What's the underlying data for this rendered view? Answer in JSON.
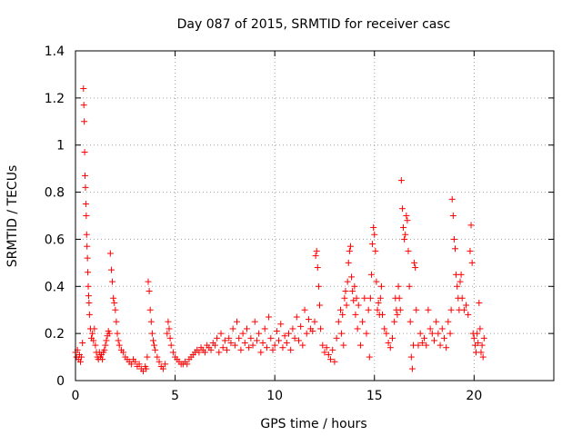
{
  "chart_data": {
    "type": "scatter",
    "title": "Day 087 of 2015, SRMTID for receiver casc",
    "xlabel": "GPS time / hours",
    "ylabel": "SRMTID / TECUs",
    "xlim": [
      0,
      24
    ],
    "ylim": [
      0,
      1.4
    ],
    "xticks": [
      "0",
      "5",
      "10",
      "15",
      "20"
    ],
    "xtick_values": [
      0,
      5,
      10,
      15,
      20
    ],
    "yticks": [
      "0",
      "0.2",
      "0.4",
      "0.6",
      "0.8",
      "1",
      "1.2",
      "1.4"
    ],
    "ytick_values": [
      0,
      0.2,
      0.4,
      0.6,
      0.8,
      1.0,
      1.2,
      1.4
    ],
    "grid": true,
    "marker": "+",
    "color": "#ff0000",
    "series": [
      {
        "name": "SRMTID",
        "points": [
          [
            0.0,
            0.12
          ],
          [
            0.05,
            0.1
          ],
          [
            0.1,
            0.13
          ],
          [
            0.15,
            0.09
          ],
          [
            0.2,
            0.11
          ],
          [
            0.25,
            0.08
          ],
          [
            0.3,
            0.1
          ],
          [
            0.35,
            0.16
          ],
          [
            0.4,
            1.24
          ],
          [
            0.42,
            1.17
          ],
          [
            0.44,
            1.1
          ],
          [
            0.46,
            0.97
          ],
          [
            0.48,
            0.87
          ],
          [
            0.5,
            0.82
          ],
          [
            0.52,
            0.75
          ],
          [
            0.54,
            0.7
          ],
          [
            0.56,
            0.62
          ],
          [
            0.58,
            0.57
          ],
          [
            0.6,
            0.52
          ],
          [
            0.62,
            0.46
          ],
          [
            0.64,
            0.4
          ],
          [
            0.66,
            0.36
          ],
          [
            0.68,
            0.33
          ],
          [
            0.7,
            0.28
          ],
          [
            0.75,
            0.22
          ],
          [
            0.8,
            0.18
          ],
          [
            0.85,
            0.2
          ],
          [
            0.9,
            0.17
          ],
          [
            0.95,
            0.22
          ],
          [
            1.0,
            0.15
          ],
          [
            1.05,
            0.12
          ],
          [
            1.1,
            0.1
          ],
          [
            1.15,
            0.09
          ],
          [
            1.2,
            0.12
          ],
          [
            1.25,
            0.1
          ],
          [
            1.3,
            0.11
          ],
          [
            1.35,
            0.09
          ],
          [
            1.4,
            0.12
          ],
          [
            1.45,
            0.13
          ],
          [
            1.5,
            0.15
          ],
          [
            1.55,
            0.17
          ],
          [
            1.6,
            0.19
          ],
          [
            1.65,
            0.21
          ],
          [
            1.7,
            0.2
          ],
          [
            1.75,
            0.54
          ],
          [
            1.8,
            0.47
          ],
          [
            1.85,
            0.42
          ],
          [
            1.9,
            0.35
          ],
          [
            1.95,
            0.33
          ],
          [
            2.0,
            0.3
          ],
          [
            2.05,
            0.25
          ],
          [
            2.1,
            0.2
          ],
          [
            2.15,
            0.17
          ],
          [
            2.2,
            0.15
          ],
          [
            2.3,
            0.13
          ],
          [
            2.4,
            0.12
          ],
          [
            2.5,
            0.1
          ],
          [
            2.6,
            0.09
          ],
          [
            2.7,
            0.08
          ],
          [
            2.8,
            0.07
          ],
          [
            2.9,
            0.09
          ],
          [
            3.0,
            0.08
          ],
          [
            3.1,
            0.06
          ],
          [
            3.2,
            0.07
          ],
          [
            3.3,
            0.05
          ],
          [
            3.4,
            0.04
          ],
          [
            3.5,
            0.06
          ],
          [
            3.55,
            0.05
          ],
          [
            3.6,
            0.1
          ],
          [
            3.65,
            0.42
          ],
          [
            3.7,
            0.38
          ],
          [
            3.75,
            0.3
          ],
          [
            3.8,
            0.25
          ],
          [
            3.85,
            0.2
          ],
          [
            3.9,
            0.17
          ],
          [
            3.95,
            0.15
          ],
          [
            4.0,
            0.13
          ],
          [
            4.1,
            0.1
          ],
          [
            4.2,
            0.08
          ],
          [
            4.3,
            0.06
          ],
          [
            4.4,
            0.05
          ],
          [
            4.5,
            0.07
          ],
          [
            4.6,
            0.2
          ],
          [
            4.65,
            0.25
          ],
          [
            4.7,
            0.22
          ],
          [
            4.75,
            0.18
          ],
          [
            4.8,
            0.15
          ],
          [
            4.9,
            0.12
          ],
          [
            5.0,
            0.1
          ],
          [
            5.1,
            0.09
          ],
          [
            5.2,
            0.08
          ],
          [
            5.3,
            0.07
          ],
          [
            5.4,
            0.07
          ],
          [
            5.5,
            0.08
          ],
          [
            5.6,
            0.07
          ],
          [
            5.7,
            0.09
          ],
          [
            5.8,
            0.1
          ],
          [
            5.9,
            0.11
          ],
          [
            6.0,
            0.12
          ],
          [
            6.1,
            0.13
          ],
          [
            6.2,
            0.12
          ],
          [
            6.3,
            0.14
          ],
          [
            6.4,
            0.13
          ],
          [
            6.5,
            0.12
          ],
          [
            6.6,
            0.15
          ],
          [
            6.7,
            0.14
          ],
          [
            6.8,
            0.13
          ],
          [
            6.9,
            0.16
          ],
          [
            7.0,
            0.15
          ],
          [
            7.1,
            0.18
          ],
          [
            7.2,
            0.12
          ],
          [
            7.3,
            0.2
          ],
          [
            7.4,
            0.14
          ],
          [
            7.5,
            0.17
          ],
          [
            7.6,
            0.13
          ],
          [
            7.7,
            0.18
          ],
          [
            7.8,
            0.16
          ],
          [
            7.9,
            0.22
          ],
          [
            8.0,
            0.15
          ],
          [
            8.1,
            0.25
          ],
          [
            8.2,
            0.18
          ],
          [
            8.3,
            0.13
          ],
          [
            8.4,
            0.2
          ],
          [
            8.5,
            0.16
          ],
          [
            8.6,
            0.22
          ],
          [
            8.7,
            0.14
          ],
          [
            8.8,
            0.18
          ],
          [
            8.9,
            0.15
          ],
          [
            9.0,
            0.25
          ],
          [
            9.1,
            0.17
          ],
          [
            9.2,
            0.2
          ],
          [
            9.3,
            0.12
          ],
          [
            9.4,
            0.16
          ],
          [
            9.5,
            0.22
          ],
          [
            9.6,
            0.14
          ],
          [
            9.7,
            0.27
          ],
          [
            9.8,
            0.18
          ],
          [
            9.9,
            0.13
          ],
          [
            10.0,
            0.15
          ],
          [
            10.1,
            0.21
          ],
          [
            10.2,
            0.17
          ],
          [
            10.3,
            0.24
          ],
          [
            10.4,
            0.14
          ],
          [
            10.5,
            0.19
          ],
          [
            10.6,
            0.16
          ],
          [
            10.7,
            0.2
          ],
          [
            10.8,
            0.13
          ],
          [
            10.9,
            0.22
          ],
          [
            11.0,
            0.18
          ],
          [
            11.1,
            0.27
          ],
          [
            11.2,
            0.17
          ],
          [
            11.3,
            0.23
          ],
          [
            11.4,
            0.15
          ],
          [
            11.5,
            0.3
          ],
          [
            11.6,
            0.2
          ],
          [
            11.7,
            0.26
          ],
          [
            11.8,
            0.22
          ],
          [
            11.9,
            0.21
          ],
          [
            12.0,
            0.25
          ],
          [
            12.05,
            0.53
          ],
          [
            12.1,
            0.55
          ],
          [
            12.15,
            0.48
          ],
          [
            12.2,
            0.4
          ],
          [
            12.25,
            0.32
          ],
          [
            12.3,
            0.22
          ],
          [
            12.4,
            0.15
          ],
          [
            12.5,
            0.12
          ],
          [
            12.6,
            0.14
          ],
          [
            12.7,
            0.11
          ],
          [
            12.8,
            0.09
          ],
          [
            12.9,
            0.13
          ],
          [
            13.0,
            0.08
          ],
          [
            13.1,
            0.18
          ],
          [
            13.2,
            0.25
          ],
          [
            13.3,
            0.3
          ],
          [
            13.35,
            0.2
          ],
          [
            13.4,
            0.28
          ],
          [
            13.45,
            0.15
          ],
          [
            13.5,
            0.35
          ],
          [
            13.55,
            0.38
          ],
          [
            13.6,
            0.32
          ],
          [
            13.65,
            0.42
          ],
          [
            13.7,
            0.5
          ],
          [
            13.75,
            0.55
          ],
          [
            13.8,
            0.57
          ],
          [
            13.85,
            0.44
          ],
          [
            13.9,
            0.38
          ],
          [
            13.95,
            0.34
          ],
          [
            14.0,
            0.4
          ],
          [
            14.05,
            0.28
          ],
          [
            14.1,
            0.35
          ],
          [
            14.15,
            0.22
          ],
          [
            14.2,
            0.32
          ],
          [
            14.3,
            0.15
          ],
          [
            14.4,
            0.25
          ],
          [
            14.5,
            0.35
          ],
          [
            14.6,
            0.2
          ],
          [
            14.7,
            0.3
          ],
          [
            14.75,
            0.1
          ],
          [
            14.8,
            0.35
          ],
          [
            14.85,
            0.45
          ],
          [
            14.9,
            0.58
          ],
          [
            14.95,
            0.65
          ],
          [
            15.0,
            0.62
          ],
          [
            15.05,
            0.55
          ],
          [
            15.1,
            0.42
          ],
          [
            15.15,
            0.3
          ],
          [
            15.2,
            0.33
          ],
          [
            15.25,
            0.28
          ],
          [
            15.3,
            0.35
          ],
          [
            15.35,
            0.4
          ],
          [
            15.4,
            0.28
          ],
          [
            15.5,
            0.22
          ],
          [
            15.6,
            0.2
          ],
          [
            15.7,
            0.16
          ],
          [
            15.8,
            0.14
          ],
          [
            15.9,
            0.18
          ],
          [
            16.0,
            0.25
          ],
          [
            16.05,
            0.35
          ],
          [
            16.1,
            0.3
          ],
          [
            16.15,
            0.28
          ],
          [
            16.2,
            0.4
          ],
          [
            16.25,
            0.35
          ],
          [
            16.3,
            0.3
          ],
          [
            16.35,
            0.85
          ],
          [
            16.4,
            0.73
          ],
          [
            16.45,
            0.65
          ],
          [
            16.5,
            0.6
          ],
          [
            16.55,
            0.62
          ],
          [
            16.6,
            0.7
          ],
          [
            16.65,
            0.68
          ],
          [
            16.7,
            0.55
          ],
          [
            16.75,
            0.4
          ],
          [
            16.8,
            0.25
          ],
          [
            16.85,
            0.1
          ],
          [
            16.9,
            0.05
          ],
          [
            16.95,
            0.15
          ],
          [
            17.0,
            0.5
          ],
          [
            17.05,
            0.48
          ],
          [
            17.1,
            0.3
          ],
          [
            17.2,
            0.15
          ],
          [
            17.3,
            0.2
          ],
          [
            17.4,
            0.16
          ],
          [
            17.5,
            0.18
          ],
          [
            17.6,
            0.15
          ],
          [
            17.7,
            0.3
          ],
          [
            17.8,
            0.22
          ],
          [
            17.9,
            0.2
          ],
          [
            18.0,
            0.17
          ],
          [
            18.1,
            0.25
          ],
          [
            18.2,
            0.2
          ],
          [
            18.3,
            0.15
          ],
          [
            18.4,
            0.22
          ],
          [
            18.5,
            0.18
          ],
          [
            18.6,
            0.14
          ],
          [
            18.7,
            0.25
          ],
          [
            18.8,
            0.2
          ],
          [
            18.85,
            0.3
          ],
          [
            18.9,
            0.77
          ],
          [
            18.95,
            0.7
          ],
          [
            19.0,
            0.6
          ],
          [
            19.05,
            0.56
          ],
          [
            19.1,
            0.45
          ],
          [
            19.15,
            0.4
          ],
          [
            19.2,
            0.35
          ],
          [
            19.25,
            0.3
          ],
          [
            19.3,
            0.42
          ],
          [
            19.35,
            0.45
          ],
          [
            19.4,
            0.35
          ],
          [
            19.5,
            0.3
          ],
          [
            19.6,
            0.32
          ],
          [
            19.7,
            0.28
          ],
          [
            19.8,
            0.55
          ],
          [
            19.85,
            0.66
          ],
          [
            19.9,
            0.5
          ],
          [
            19.95,
            0.2
          ],
          [
            20.0,
            0.18
          ],
          [
            20.05,
            0.15
          ],
          [
            20.1,
            0.12
          ],
          [
            20.15,
            0.2
          ],
          [
            20.2,
            0.16
          ],
          [
            20.25,
            0.33
          ],
          [
            20.3,
            0.22
          ],
          [
            20.35,
            0.12
          ],
          [
            20.4,
            0.15
          ],
          [
            20.45,
            0.1
          ],
          [
            20.5,
            0.18
          ]
        ]
      }
    ]
  }
}
